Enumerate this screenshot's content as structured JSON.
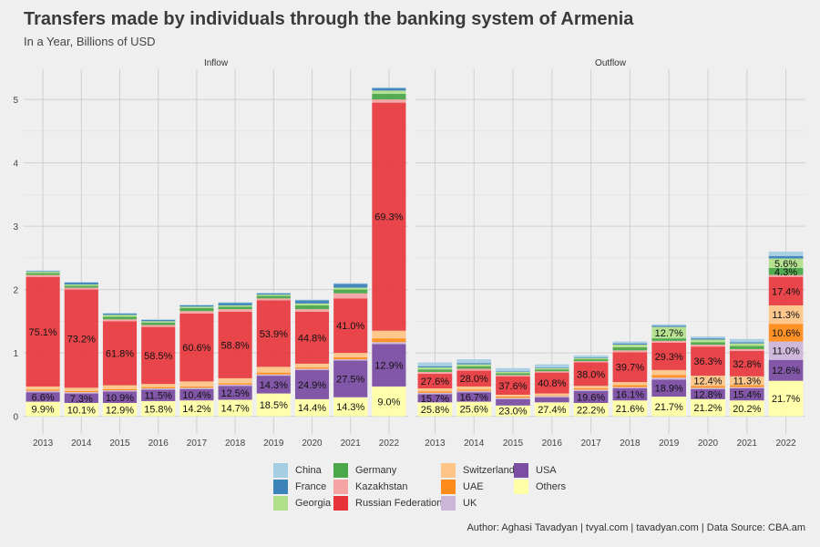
{
  "title": "Transfers made by individuals through the banking system of Armenia",
  "subtitle": "In a Year, Billions of USD",
  "caption": "Author: Aghasi Tavadyan   |   tvyal.com   |   tavadyan.com   |   Data Source: CBA.am",
  "chart_data": {
    "type": "bar",
    "stacked": true,
    "facets": [
      "Inflow",
      "Outflow"
    ],
    "categories": [
      "2013",
      "2014",
      "2015",
      "2016",
      "2017",
      "2018",
      "2019",
      "2020",
      "2021",
      "2022"
    ],
    "y_ticks": [
      0,
      1,
      2,
      3,
      4,
      5
    ],
    "ylim": [
      0,
      5.3
    ],
    "grid": true,
    "legend_position": "bottom",
    "stack_order": [
      "Others",
      "USA",
      "UK",
      "UAE",
      "Switzerland",
      "Russian Federation",
      "Kazakhstan",
      "Germany",
      "Georgia",
      "France",
      "China"
    ],
    "series_colors": {
      "China": "#a6cee3",
      "France": "#3b83b8",
      "Georgia": "#b2df8a",
      "Germany": "#4aa84a",
      "Kazakhstan": "#f5a3a3",
      "Russian Federation": "#e8333a",
      "Switzerland": "#fdc588",
      "UAE": "#ff8c1a",
      "UK": "#cbb5d9",
      "USA": "#7b4ea3",
      "Others": "#ffffa8"
    },
    "legend": [
      {
        "name": "China",
        "color": "#a6cee3"
      },
      {
        "name": "France",
        "color": "#3b83b8"
      },
      {
        "name": "Georgia",
        "color": "#b2df8a"
      },
      {
        "name": "Germany",
        "color": "#4aa84a"
      },
      {
        "name": "Kazakhstan",
        "color": "#f5a3a3"
      },
      {
        "name": "Russian Federation",
        "color": "#e8333a"
      },
      {
        "name": "Switzerland",
        "color": "#fdc588"
      },
      {
        "name": "UAE",
        "color": "#ff8c1a"
      },
      {
        "name": "UK",
        "color": "#cbb5d9"
      },
      {
        "name": "USA",
        "color": "#7b4ea3"
      },
      {
        "name": "Others",
        "color": "#ffffa8"
      }
    ],
    "panels": [
      {
        "name": "Inflow",
        "years": [
          {
            "year": "2013",
            "total": 2.3,
            "values": {
              "Others": 0.23,
              "USA": 0.15,
              "UK": 0.02,
              "UAE": 0.02,
              "Switzerland": 0.05,
              "Russian Federation": 1.73,
              "Kazakhstan": 0.03,
              "Germany": 0.03,
              "Georgia": 0.02,
              "France": 0.01,
              "China": 0.01
            },
            "labels": {
              "Others": "9.9%",
              "USA": "6.6%",
              "Russian Federation": "75.1%"
            }
          },
          {
            "year": "2014",
            "total": 2.12,
            "values": {
              "Others": 0.21,
              "USA": 0.15,
              "UK": 0.02,
              "UAE": 0.02,
              "Switzerland": 0.05,
              "Russian Federation": 1.55,
              "Kazakhstan": 0.03,
              "Germany": 0.03,
              "Georgia": 0.02,
              "France": 0.03,
              "China": 0.01
            },
            "labels": {
              "Others": "10.1%",
              "USA": "7.3%",
              "Russian Federation": "73.2%"
            }
          },
          {
            "year": "2015",
            "total": 1.63,
            "values": {
              "Others": 0.21,
              "USA": 0.18,
              "UK": 0.02,
              "UAE": 0.02,
              "Switzerland": 0.06,
              "Russian Federation": 1.01,
              "Kazakhstan": 0.03,
              "Germany": 0.04,
              "Georgia": 0.03,
              "France": 0.02,
              "China": 0.01
            },
            "labels": {
              "Others": "12.9%",
              "USA": "10.9%",
              "Russian Federation": "61.8%"
            }
          },
          {
            "year": "2016",
            "total": 1.53,
            "values": {
              "Others": 0.24,
              "USA": 0.18,
              "UK": 0.02,
              "UAE": 0.02,
              "Switzerland": 0.05,
              "Russian Federation": 0.9,
              "Kazakhstan": 0.03,
              "Germany": 0.04,
              "Georgia": 0.02,
              "France": 0.02,
              "China": 0.01
            },
            "labels": {
              "Others": "15.8%",
              "USA": "11.5%",
              "Russian Federation": "58.5%"
            }
          },
          {
            "year": "2017",
            "total": 1.76,
            "values": {
              "Others": 0.25,
              "USA": 0.18,
              "UK": 0.02,
              "UAE": 0.02,
              "Switzerland": 0.08,
              "Russian Federation": 1.07,
              "Kazakhstan": 0.04,
              "Germany": 0.05,
              "Georgia": 0.02,
              "France": 0.02,
              "China": 0.01
            },
            "labels": {
              "Others": "14.2%",
              "USA": "10.4%",
              "Russian Federation": "60.6%"
            }
          },
          {
            "year": "2018",
            "total": 1.78,
            "values": {
              "Others": 0.26,
              "USA": 0.22,
              "UK": 0.02,
              "UAE": 0.02,
              "Switzerland": 0.08,
              "Russian Federation": 1.05,
              "Kazakhstan": 0.04,
              "Germany": 0.04,
              "Georgia": 0.02,
              "France": 0.04,
              "China": 0.01
            },
            "labels": {
              "Others": "14.7%",
              "USA": "12.5%",
              "Russian Federation": "58.8%"
            }
          },
          {
            "year": "2019",
            "total": 1.95,
            "values": {
              "Others": 0.36,
              "USA": 0.28,
              "UK": 0.02,
              "UAE": 0.03,
              "Switzerland": 0.09,
              "Russian Federation": 1.05,
              "Kazakhstan": 0.03,
              "Germany": 0.04,
              "Georgia": 0.02,
              "France": 0.02,
              "China": 0.01
            },
            "labels": {
              "Others": "18.5%",
              "USA": "14.3%",
              "Russian Federation": "53.9%"
            }
          },
          {
            "year": "2020",
            "total": 1.84,
            "values": {
              "Others": 0.27,
              "USA": 0.46,
              "UK": 0.02,
              "UAE": 0.02,
              "Switzerland": 0.06,
              "Russian Federation": 0.82,
              "Kazakhstan": 0.04,
              "Germany": 0.06,
              "Georgia": 0.03,
              "France": 0.05,
              "China": 0.01
            },
            "labels": {
              "Others": "14.4%",
              "USA": "24.9%",
              "Russian Federation": "44.8%"
            }
          },
          {
            "year": "2021",
            "total": 2.1,
            "values": {
              "Others": 0.3,
              "USA": 0.58,
              "UK": 0.02,
              "UAE": 0.03,
              "Switzerland": 0.07,
              "Russian Federation": 0.86,
              "Kazakhstan": 0.08,
              "Germany": 0.06,
              "Georgia": 0.03,
              "France": 0.06,
              "China": 0.01
            },
            "labels": {
              "Others": "14.3%",
              "USA": "27.5%",
              "Russian Federation": "41.0%"
            }
          },
          {
            "year": "2022",
            "total": 5.19,
            "values": {
              "Others": 0.47,
              "USA": 0.67,
              "UK": 0.03,
              "UAE": 0.06,
              "Switzerland": 0.12,
              "Russian Federation": 3.6,
              "Kazakhstan": 0.05,
              "Germany": 0.09,
              "Georgia": 0.05,
              "France": 0.04,
              "China": 0.01
            },
            "labels": {
              "Others": "9.0%",
              "USA": "12.9%",
              "Russian Federation": "69.3%"
            }
          }
        ]
      },
      {
        "name": "Outflow",
        "years": [
          {
            "year": "2013",
            "total": 0.85,
            "values": {
              "Others": 0.22,
              "USA": 0.13,
              "UK": 0.02,
              "UAE": 0.02,
              "Switzerland": 0.05,
              "Russian Federation": 0.23,
              "Kazakhstan": 0.03,
              "Germany": 0.04,
              "Georgia": 0.03,
              "France": 0.02,
              "China": 0.06
            },
            "labels": {
              "Others": "25.8%",
              "USA": "15.7%",
              "Russian Federation": "27.6%"
            }
          },
          {
            "year": "2014",
            "total": 0.9,
            "values": {
              "Others": 0.23,
              "USA": 0.15,
              "UK": 0.02,
              "UAE": 0.02,
              "Switzerland": 0.05,
              "Russian Federation": 0.25,
              "Kazakhstan": 0.03,
              "Germany": 0.04,
              "Georgia": 0.03,
              "France": 0.02,
              "China": 0.06
            },
            "labels": {
              "Others": "25.6%",
              "USA": "16.7%",
              "Russian Federation": "28.0%"
            }
          },
          {
            "year": "2015",
            "total": 0.76,
            "values": {
              "Others": 0.17,
              "USA": 0.1,
              "UK": 0.02,
              "UAE": 0.02,
              "Switzerland": 0.03,
              "Russian Federation": 0.29,
              "Kazakhstan": 0.02,
              "Germany": 0.03,
              "Georgia": 0.02,
              "France": 0.01,
              "China": 0.05
            },
            "labels": {
              "Others": "23.0%",
              "Russian Federation": "37.6%"
            }
          },
          {
            "year": "2016",
            "total": 0.82,
            "values": {
              "Others": 0.22,
              "USA": 0.08,
              "UK": 0.02,
              "UAE": 0.01,
              "Switzerland": 0.03,
              "Russian Federation": 0.33,
              "Kazakhstan": 0.02,
              "Germany": 0.03,
              "Georgia": 0.02,
              "France": 0.01,
              "China": 0.05
            },
            "labels": {
              "Others": "27.4%",
              "Russian Federation": "40.8%"
            }
          },
          {
            "year": "2017",
            "total": 0.96,
            "values": {
              "Others": 0.21,
              "USA": 0.19,
              "UK": 0.02,
              "UAE": 0.02,
              "Switzerland": 0.04,
              "Russian Federation": 0.37,
              "Kazakhstan": 0.02,
              "Germany": 0.03,
              "Georgia": 0.02,
              "France": 0.01,
              "China": 0.03
            },
            "labels": {
              "Others": "22.2%",
              "USA": "19.6%",
              "Russian Federation": "38.0%"
            }
          },
          {
            "year": "2018",
            "total": 1.18,
            "values": {
              "Others": 0.25,
              "USA": 0.19,
              "UK": 0.02,
              "UAE": 0.03,
              "Switzerland": 0.05,
              "Russian Federation": 0.47,
              "Kazakhstan": 0.03,
              "Germany": 0.05,
              "Georgia": 0.04,
              "France": 0.02,
              "China": 0.03
            },
            "labels": {
              "Others": "21.6%",
              "USA": "16.1%",
              "Russian Federation": "39.7%"
            }
          },
          {
            "year": "2019",
            "total": 1.45,
            "values": {
              "Others": 0.31,
              "USA": 0.27,
              "UK": 0.03,
              "UAE": 0.04,
              "Switzerland": 0.08,
              "Russian Federation": 0.43,
              "Kazakhstan": 0.03,
              "Germany": 0.04,
              "Georgia": 0.18,
              "France": 0.02,
              "China": 0.02
            },
            "labels": {
              "Others": "21.7%",
              "USA": "18.9%",
              "Russian Federation": "29.3%",
              "Georgia": "12.7%"
            }
          },
          {
            "year": "2020",
            "total": 1.26,
            "values": {
              "Others": 0.27,
              "USA": 0.16,
              "UK": 0.02,
              "UAE": 0.03,
              "Switzerland": 0.16,
              "Russian Federation": 0.46,
              "Kazakhstan": 0.03,
              "Germany": 0.04,
              "Georgia": 0.04,
              "France": 0.02,
              "China": 0.03
            },
            "labels": {
              "Others": "21.2%",
              "USA": "12.8%",
              "Switzerland": "12.4%",
              "Russian Federation": "36.3%"
            }
          },
          {
            "year": "2021",
            "total": 1.22,
            "values": {
              "Others": 0.25,
              "USA": 0.19,
              "UK": 0.02,
              "UAE": 0.03,
              "Switzerland": 0.14,
              "Russian Federation": 0.4,
              "Kazakhstan": 0.03,
              "Germany": 0.05,
              "Georgia": 0.04,
              "France": 0.02,
              "China": 0.05
            },
            "labels": {
              "Others": "20.2%",
              "USA": "15.4%",
              "Switzerland": "11.3%",
              "Russian Federation": "32.8%"
            }
          },
          {
            "year": "2022",
            "total": 2.6,
            "values": {
              "Others": 0.56,
              "USA": 0.33,
              "UK": 0.29,
              "UAE": 0.28,
              "Switzerland": 0.29,
              "Russian Federation": 0.45,
              "Kazakhstan": 0.03,
              "Germany": 0.11,
              "Georgia": 0.15,
              "France": 0.04,
              "China": 0.07
            },
            "labels": {
              "Others": "21.7%",
              "USA": "12.6%",
              "UK": "11.0%",
              "UAE": "10.6%",
              "Switzerland": "11.3%",
              "Russian Federation": "17.4%",
              "Germany": "4.3%",
              "Georgia": "5.6%"
            }
          }
        ]
      }
    ]
  }
}
